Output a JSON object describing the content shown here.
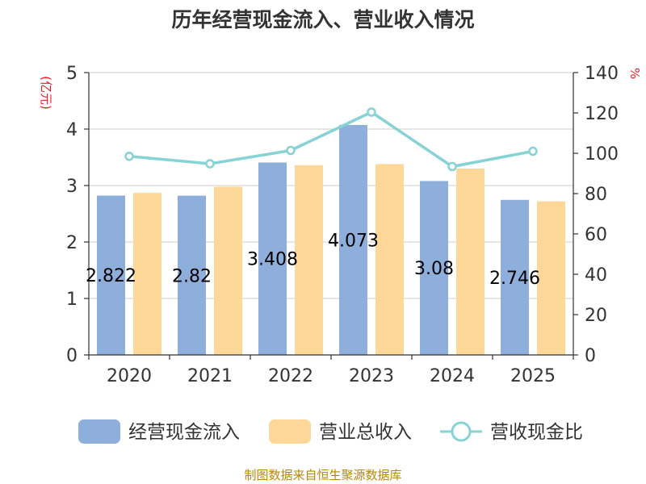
{
  "chart_data": {
    "type": "bar",
    "title": "历年经营现金流入、营业收入情况",
    "categories": [
      "2020",
      "2021",
      "2022",
      "2023",
      "2024",
      "2025"
    ],
    "series": [
      {
        "name": "经营现金流入",
        "kind": "bar",
        "axis": "left",
        "color": "#8eaedb",
        "values": [
          2.822,
          2.82,
          3.408,
          4.073,
          3.08,
          2.746
        ],
        "labels": [
          "2.822",
          "2.82",
          "3.408",
          "4.073",
          "3.08",
          "2.746"
        ]
      },
      {
        "name": "营业总收入",
        "kind": "bar",
        "axis": "left",
        "color": "#fdd797",
        "values": [
          2.87,
          2.98,
          3.36,
          3.38,
          3.3,
          2.72
        ]
      },
      {
        "name": "营收现金比",
        "kind": "line",
        "axis": "right",
        "color": "#86d3d6",
        "values": [
          98.5,
          94.8,
          101.4,
          120.4,
          93.4,
          101.0
        ]
      }
    ],
    "left_axis": {
      "label": "(亿元)",
      "min": 0,
      "max": 5,
      "ticks": [
        "0",
        "1",
        "2",
        "3",
        "4",
        "5"
      ]
    },
    "right_axis": {
      "label": "%",
      "min": 0,
      "max": 140,
      "ticks": [
        "0",
        "20",
        "40",
        "60",
        "80",
        "100",
        "120",
        "140"
      ]
    },
    "grid": true,
    "legend_position": "bottom"
  },
  "source_text": "制图数据来自恒生聚源数据库"
}
